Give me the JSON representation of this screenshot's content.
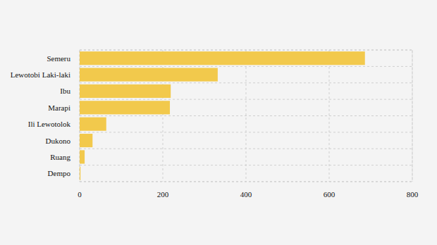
{
  "chart_data": {
    "type": "bar",
    "orientation": "horizontal",
    "categories": [
      "Semeru",
      "Lewotobi Laki-laki",
      "Ibu",
      "Marapi",
      "Ili Lewotolok",
      "Dukono",
      "Ruang",
      "Dempo"
    ],
    "values": [
      686,
      332,
      219,
      217,
      64,
      31,
      12,
      2
    ],
    "color": "#f2c94c",
    "xlim": [
      0,
      800
    ],
    "xticks": [
      0,
      200,
      400,
      600,
      800
    ],
    "grid": true
  }
}
